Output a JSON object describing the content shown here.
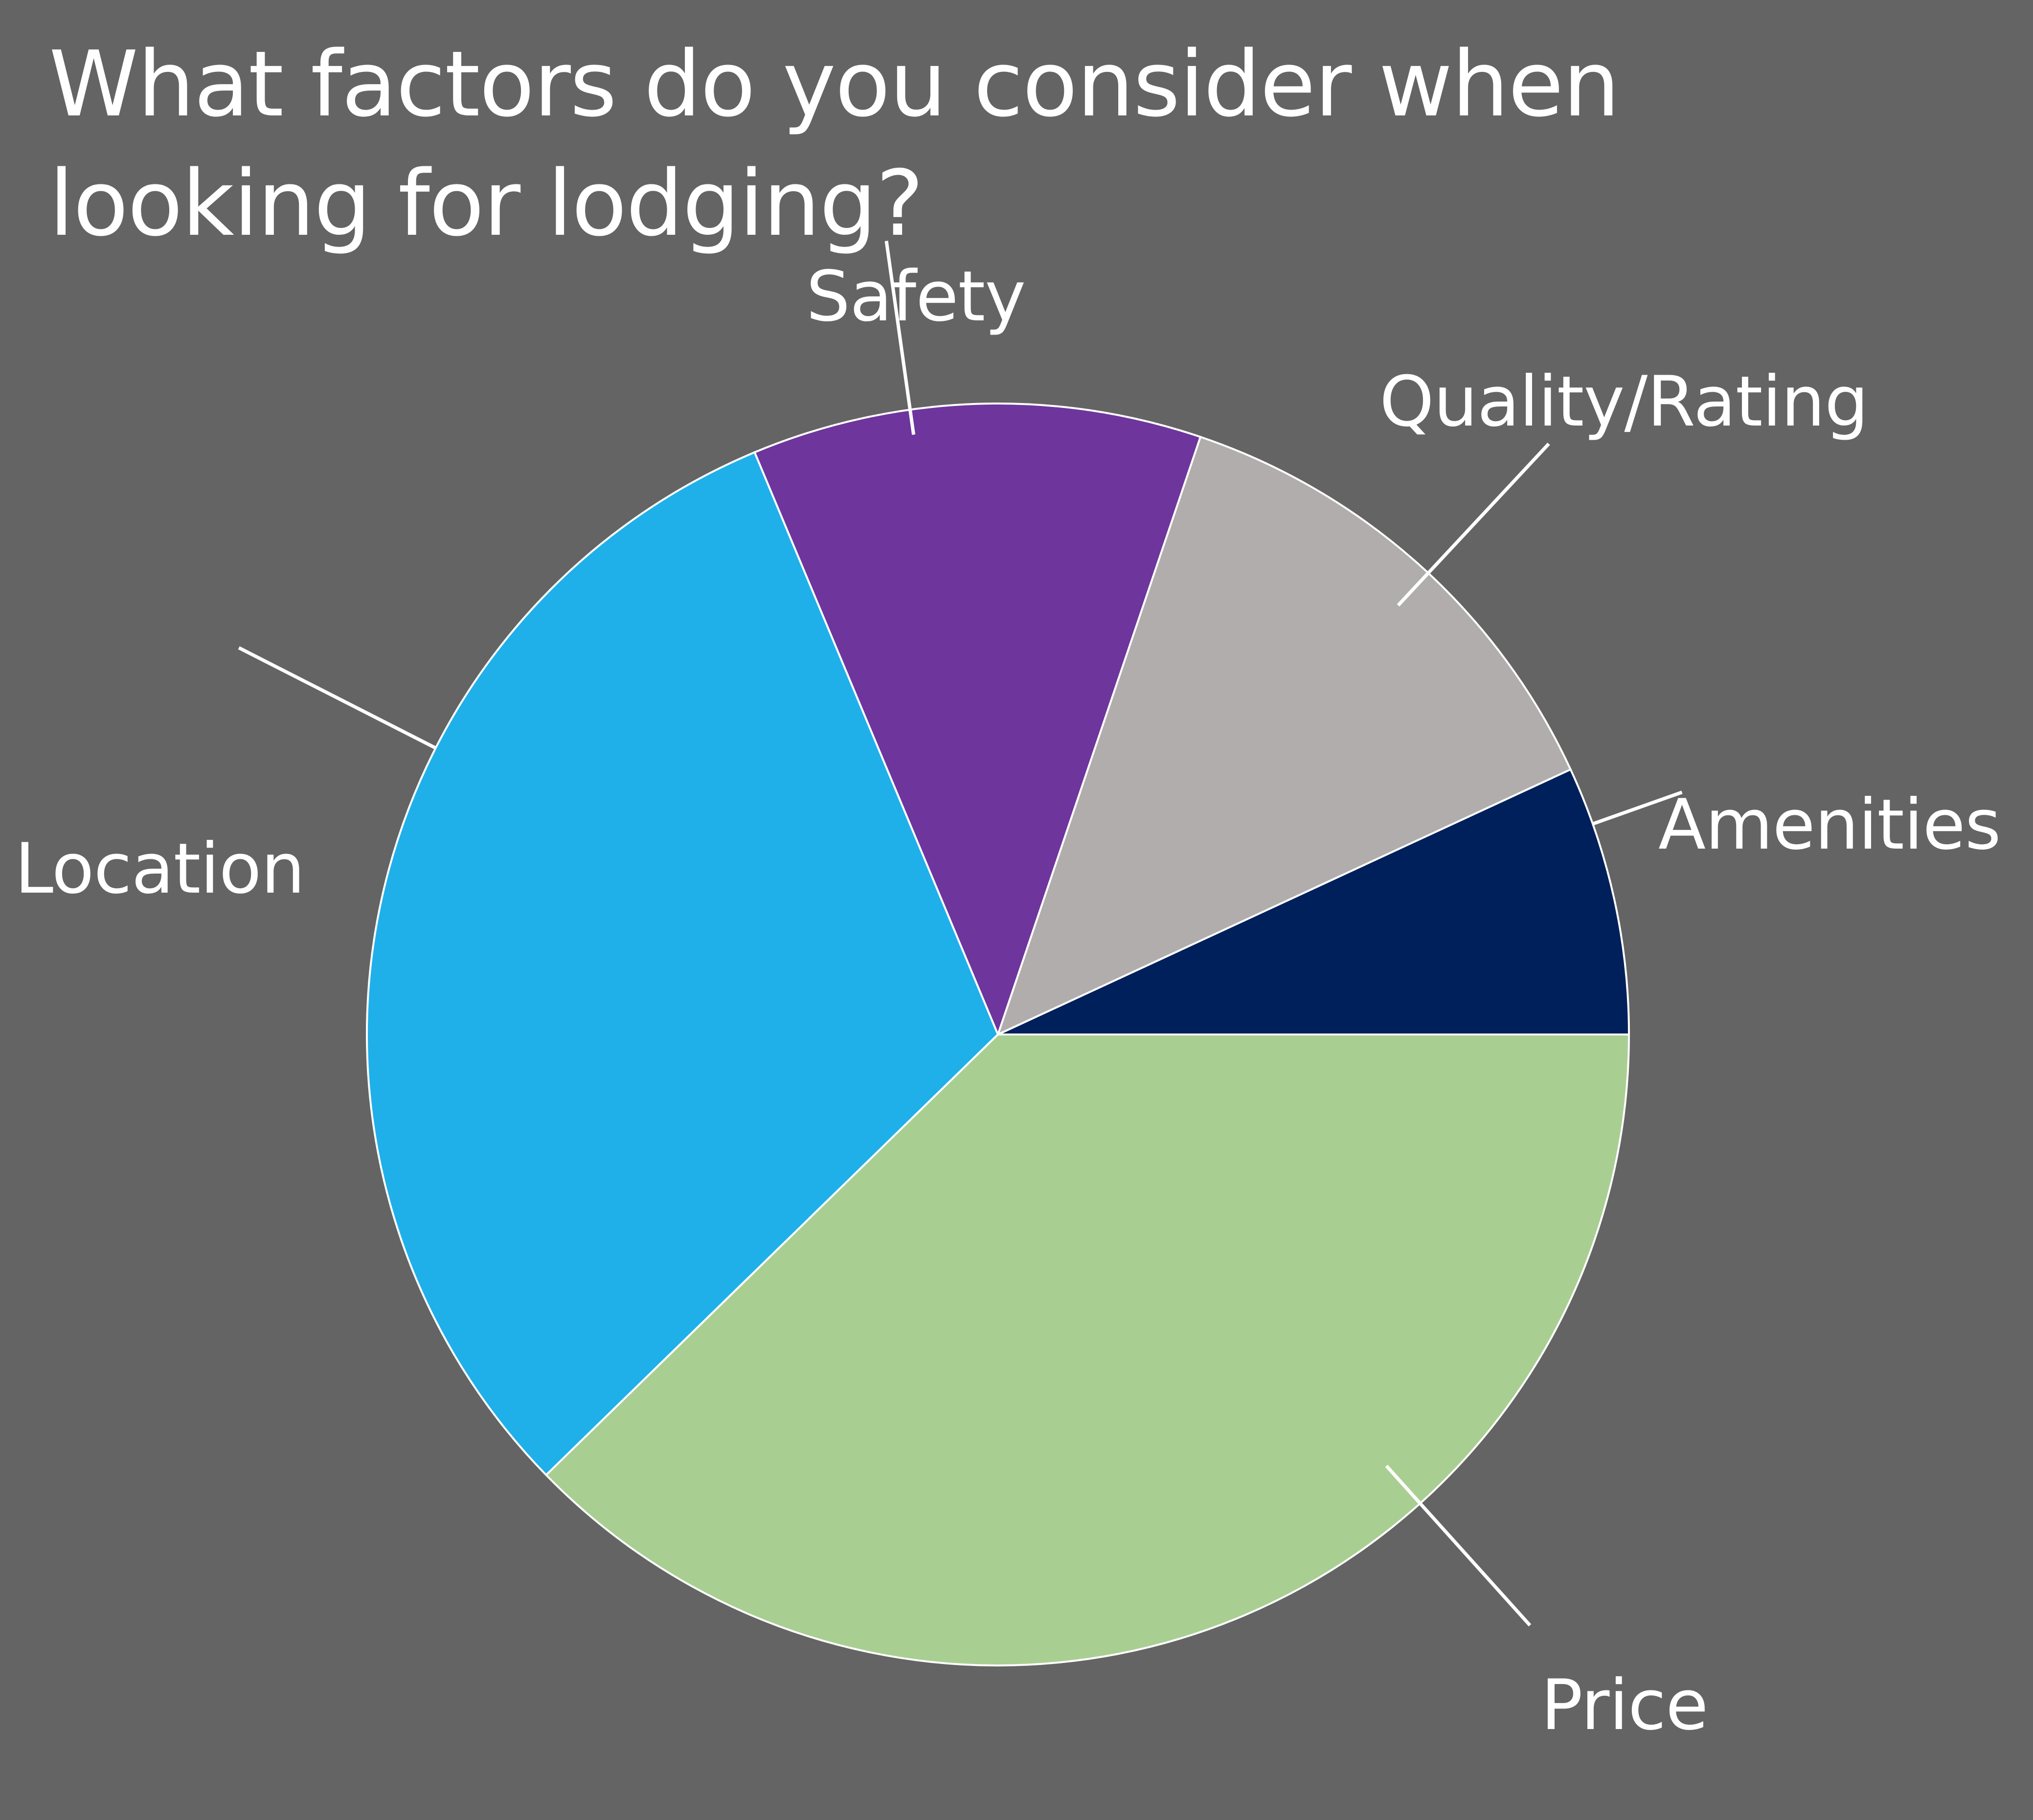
{
  "chart_data": {
    "type": "pie",
    "title": "What factors do you consider when looking for lodging?",
    "categories": [
      "Amenities",
      "Quality/Rating",
      "Safety",
      "Location",
      "Price"
    ],
    "values": [
      6.9,
      12.9,
      11.5,
      31.0,
      37.7
    ],
    "colors": [
      "#00205b",
      "#b0adac",
      "#6e359d",
      "#1fb0ea",
      "#a9ce92"
    ],
    "start_angle_deg": 0,
    "direction": "counterclockwise",
    "legend": "none",
    "data_labels": "category names outside slices with leader lines"
  }
}
